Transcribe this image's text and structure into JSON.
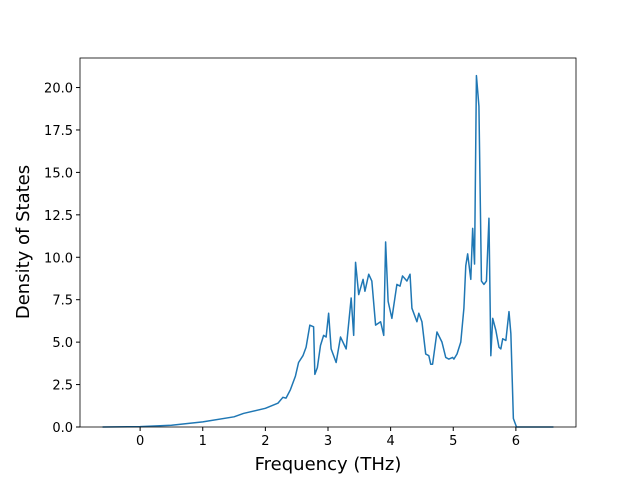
{
  "chart_data": {
    "type": "line",
    "xlabel": "Frequency (THz)",
    "ylabel": "Density of States",
    "color": "#1f77b4",
    "x": [
      -0.6,
      0,
      0.5,
      1,
      1.5,
      1.65,
      2.0,
      2.2,
      2.28,
      2.33,
      2.4,
      2.48,
      2.53,
      2.6,
      2.65,
      2.71,
      2.77,
      2.79,
      2.83,
      2.88,
      2.93,
      2.97,
      3.01,
      3.05,
      3.13,
      3.2,
      3.29,
      3.37,
      3.41,
      3.44,
      3.49,
      3.56,
      3.59,
      3.65,
      3.7,
      3.76,
      3.84,
      3.89,
      3.92,
      3.96,
      4.02,
      4.1,
      4.15,
      4.19,
      4.26,
      4.31,
      4.34,
      4.42,
      4.45,
      4.5,
      4.56,
      4.61,
      4.64,
      4.67,
      4.74,
      4.82,
      4.88,
      4.93,
      4.99,
      5.01,
      5.06,
      5.12,
      5.17,
      5.2,
      5.23,
      5.28,
      5.31,
      5.34,
      5.37,
      5.41,
      5.45,
      5.49,
      5.53,
      5.57,
      5.6,
      5.63,
      5.68,
      5.73,
      5.76,
      5.79,
      5.84,
      5.89,
      5.92,
      5.96,
      6.01,
      6.6
    ],
    "values": [
      0,
      0.02,
      0.1,
      0.3,
      0.6,
      0.8,
      1.1,
      1.4,
      1.75,
      1.7,
      2.2,
      3.0,
      3.8,
      4.2,
      4.7,
      6.0,
      5.9,
      3.1,
      3.5,
      4.8,
      5.4,
      5.3,
      6.7,
      4.6,
      3.8,
      5.3,
      4.6,
      7.6,
      5.4,
      9.7,
      7.8,
      8.7,
      8.0,
      9.0,
      8.6,
      6.0,
      6.2,
      5.4,
      10.9,
      7.4,
      6.4,
      8.4,
      8.3,
      8.9,
      8.6,
      9.0,
      7.0,
      6.2,
      6.7,
      6.2,
      4.3,
      4.2,
      3.7,
      3.7,
      5.6,
      5.0,
      4.1,
      4.0,
      4.1,
      4.0,
      4.3,
      5.0,
      7.0,
      9.5,
      10.2,
      8.7,
      11.7,
      9.6,
      20.7,
      18.9,
      8.6,
      8.4,
      8.6,
      12.3,
      4.2,
      6.4,
      5.7,
      4.7,
      4.6,
      5.2,
      5.1,
      6.8,
      5.5,
      0.5,
      0.0,
      0
    ],
    "xlim": [
      -0.96,
      6.96
    ],
    "ylim": [
      0,
      21.74
    ],
    "xticks": [
      0,
      1,
      2,
      3,
      4,
      5,
      6
    ],
    "yticks": [
      {
        "value": 0,
        "label": "0.0"
      },
      {
        "value": 2.5,
        "label": "2.5"
      },
      {
        "value": 5,
        "label": "5.0"
      },
      {
        "value": 7.5,
        "label": "7.5"
      },
      {
        "value": 10,
        "label": "10.0"
      },
      {
        "value": 12.5,
        "label": "12.5"
      },
      {
        "value": 15,
        "label": "15.0"
      },
      {
        "value": 17.5,
        "label": "17.5"
      },
      {
        "value": 20,
        "label": "20.0"
      }
    ]
  }
}
